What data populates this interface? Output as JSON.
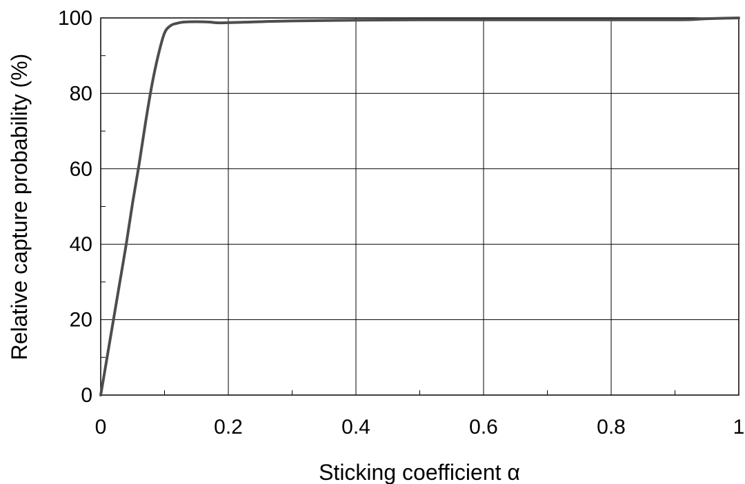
{
  "chart_data": {
    "type": "line",
    "title": "",
    "xlabel": "Sticking coefficient α",
    "ylabel": "Relative capture probability  (%)",
    "xlim": [
      0,
      1
    ],
    "ylim": [
      0,
      100
    ],
    "grid": true,
    "x_ticks": [
      0,
      0.2,
      0.4,
      0.6,
      0.8,
      1
    ],
    "x_tick_labels": [
      "0",
      "0.2",
      "0.4",
      "0.6",
      "0.8",
      "1"
    ],
    "y_ticks": [
      0,
      20,
      40,
      60,
      80,
      100
    ],
    "y_tick_labels": [
      "0",
      "20",
      "40",
      "60",
      "80",
      "100"
    ],
    "x_minor_ticks": [
      0.1,
      0.3,
      0.5,
      0.7,
      0.9
    ],
    "y_minor_ticks": [
      10,
      30,
      50,
      70,
      90
    ],
    "series": [
      {
        "color": "#4d4d4d",
        "x": [
          0,
          0.01,
          0.02,
          0.03,
          0.04,
          0.05,
          0.06,
          0.07,
          0.08,
          0.09,
          0.1,
          0.11,
          0.12,
          0.13,
          0.15,
          0.17,
          0.19,
          0.25,
          0.3,
          0.4,
          0.5,
          0.6,
          0.7,
          0.8,
          0.9,
          0.93,
          0.95,
          1.0
        ],
        "y": [
          0,
          10,
          20,
          30,
          40,
          51,
          61,
          72,
          82,
          90,
          96,
          98,
          98.6,
          98.9,
          99,
          98.9,
          98.7,
          99,
          99.2,
          99.4,
          99.5,
          99.5,
          99.5,
          99.5,
          99.5,
          99.6,
          99.8,
          100
        ]
      }
    ]
  }
}
